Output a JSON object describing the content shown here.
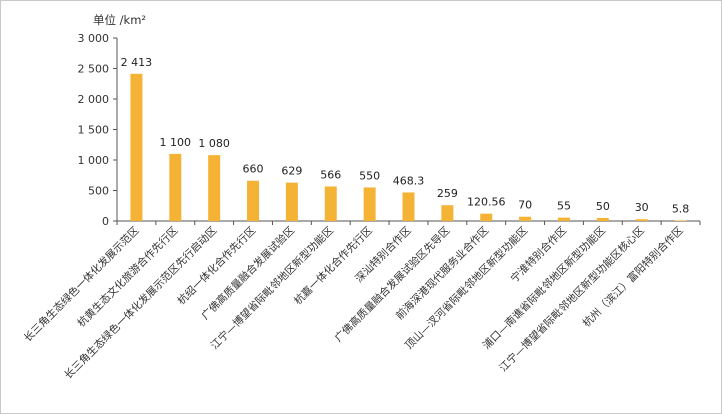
{
  "chart_data": {
    "type": "bar",
    "unit_label": "单位 /km²",
    "ylim": [
      0,
      3000
    ],
    "yticks": [
      0,
      500,
      1000,
      1500,
      2000,
      2500,
      3000
    ],
    "ytick_labels": [
      "0",
      "500",
      "1 000",
      "1 500",
      "2 000",
      "2 500",
      "3 000"
    ],
    "categories": [
      "长三角生态绿色一体化发展示范区",
      "杭黄生态文化旅游合作先行区",
      "长三角生态绿色一体化发展示范区先行启动区",
      "杭绍一体化合作先行区",
      "广佛高质量融合发展试验区",
      "江宁—博望省际毗邻地区新型功能区",
      "杭嘉一体化合作先行区",
      "深汕特别合作区",
      "广佛高质量融合发展试验区先导区",
      "前海深港现代服务业合作区",
      "顶山—汊河省际毗邻地区新型功能区",
      "宁淮特别合作区",
      "浦口—南谯省际毗邻地区新型功能区",
      "江宁—博望省际毗邻地区新型功能区核心区",
      "杭州（滨江）富阳特别合作区"
    ],
    "values": [
      2413,
      1100,
      1080,
      660,
      629,
      566,
      550,
      468.3,
      259,
      120.56,
      70,
      55,
      50,
      30,
      5.8
    ],
    "value_labels": [
      "2 413",
      "1 100",
      "1 080",
      "660",
      "629",
      "566",
      "550",
      "468.3",
      "259",
      "120.56",
      "70",
      "55",
      "50",
      "30",
      "5.8"
    ],
    "bar_color": "#f5b335",
    "axis_color": "#555555",
    "grid": false
  }
}
